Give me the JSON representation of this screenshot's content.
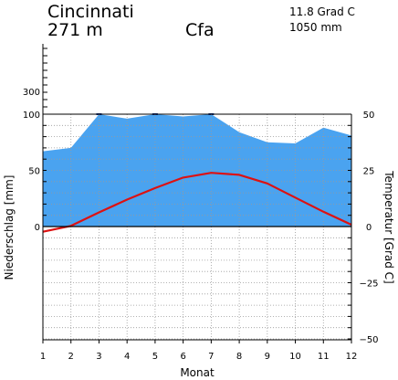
{
  "station": {
    "name": "Cincinnati",
    "elevation": "271 m",
    "climate_class": "Cfa",
    "mean_temperature": "11.8 Grad C",
    "annual_precipitation": "1050 mm"
  },
  "chart_data": {
    "type": "area",
    "title": "",
    "xlabel": "Monat",
    "ylabel_left": "Niederschlag [mm]",
    "ylabel_right": "Temperatur [Grad C]",
    "x": [
      1,
      2,
      3,
      4,
      5,
      6,
      7,
      8,
      9,
      10,
      11,
      12
    ],
    "x_ticks": [
      "1",
      "2",
      "3",
      "4",
      "5",
      "6",
      "7",
      "8",
      "9",
      "10",
      "11",
      "12"
    ],
    "precip_ticks": [
      "0",
      "50",
      "100",
      "300"
    ],
    "temp_ticks": [
      "50",
      "25",
      "0",
      "−25",
      "−50"
    ],
    "precip_range": [
      0,
      100
    ],
    "temp_range": [
      -50,
      50
    ],
    "grid": true,
    "series": [
      {
        "name": "Niederschlag",
        "unit": "mm",
        "color": "#4aa3f0",
        "values": [
          67,
          70,
          102,
          96,
          103,
          98,
          104,
          84,
          75,
          74,
          88,
          81
        ]
      },
      {
        "name": "Temperatur",
        "unit": "Grad C",
        "color": "#dd1111",
        "values": [
          -2.3,
          0.3,
          6.3,
          12.0,
          17.1,
          21.8,
          23.9,
          23.0,
          19.2,
          12.9,
          6.6,
          0.8
        ]
      }
    ]
  }
}
